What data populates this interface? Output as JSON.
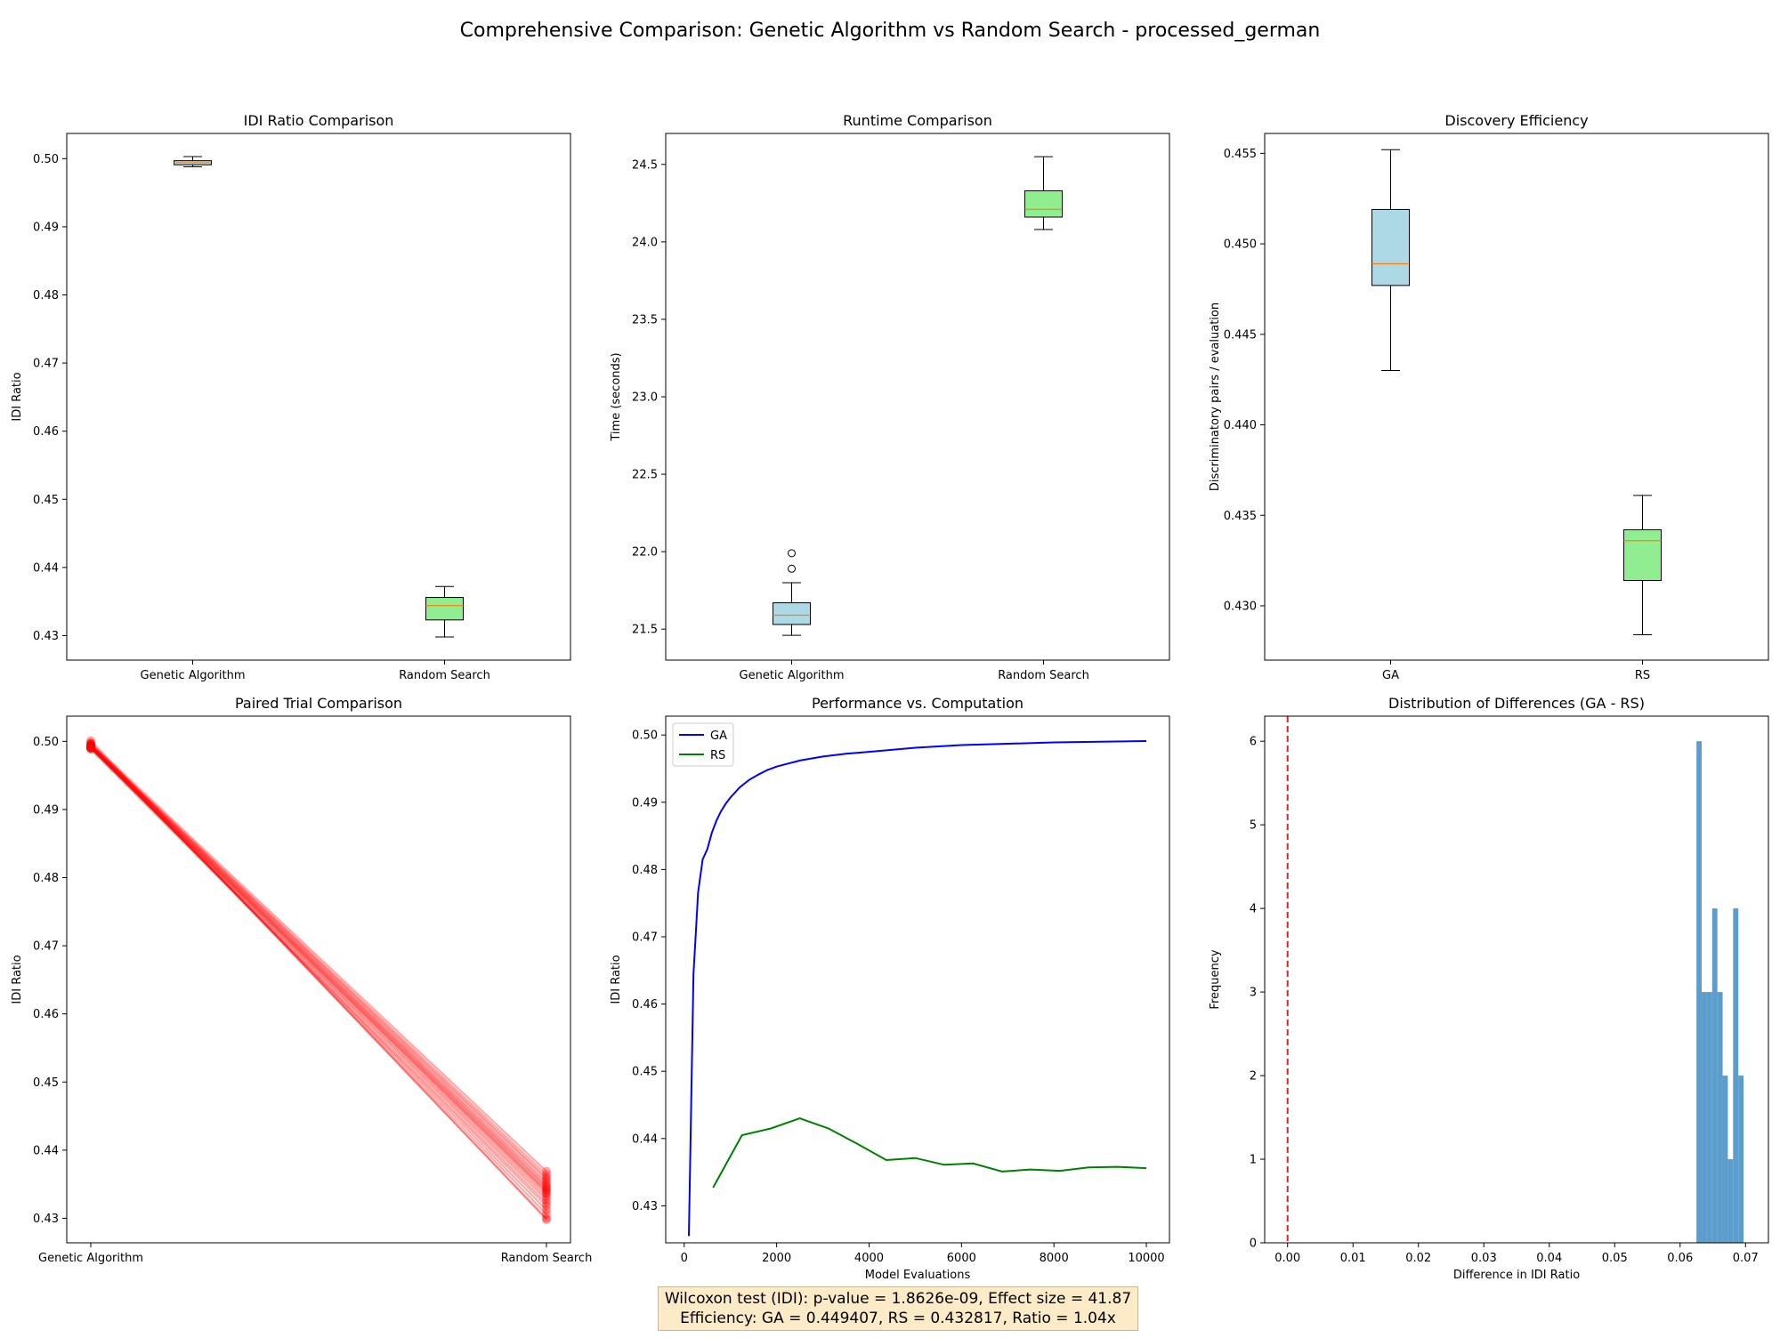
{
  "suptitle": "Comprehensive Comparison: Genetic Algorithm vs Random Search - processed_german",
  "stats_box": {
    "line1": "Wilcoxon test (IDI): p-value = 1.8626e-09, Effect size = 41.87",
    "line2": "Efficiency: GA = 0.449407, RS = 0.432817, Ratio = 1.04x",
    "background": "#fdebc8"
  },
  "colors": {
    "ga_box": "#add8e6",
    "rs_box": "#90ee90",
    "median": "#ff7f0e",
    "ga_line": "#0000ff",
    "rs_line": "#008000",
    "paired": "#ff0000",
    "hist": "#5d9dcb",
    "zero_line": "#d62728"
  },
  "chart_data": [
    {
      "id": "idi-ratio",
      "type": "box",
      "title": "IDI Ratio Comparison",
      "xlabel": "",
      "ylabel": "IDI Ratio",
      "ylim": [
        0.4264,
        0.5037
      ],
      "yticks": [
        0.43,
        0.44,
        0.45,
        0.46,
        0.47,
        0.48,
        0.49,
        0.5
      ],
      "ytick_labels": [
        "0.43",
        "0.44",
        "0.45",
        "0.46",
        "0.47",
        "0.48",
        "0.49",
        "0.50"
      ],
      "boxes": [
        {
          "label": "Genetic Algorithm",
          "whislo": 0.4988,
          "q1": 0.4991,
          "med": 0.4994,
          "q3": 0.4997,
          "whishi": 0.5003,
          "fliers": [],
          "color": "#add8e6"
        },
        {
          "label": "Random Search",
          "whislo": 0.4298,
          "q1": 0.4323,
          "med": 0.4344,
          "q3": 0.4356,
          "whishi": 0.4372,
          "fliers": [],
          "color": "#90ee90"
        }
      ]
    },
    {
      "id": "runtime",
      "type": "box",
      "title": "Runtime Comparison",
      "xlabel": "",
      "ylabel": "Time (seconds)",
      "ylim": [
        21.3,
        24.7
      ],
      "yticks": [
        21.5,
        22.0,
        22.5,
        23.0,
        23.5,
        24.0,
        24.5
      ],
      "ytick_labels": [
        "21.5",
        "22.0",
        "22.5",
        "23.0",
        "23.5",
        "24.0",
        "24.5"
      ],
      "boxes": [
        {
          "label": "Genetic Algorithm",
          "whislo": 21.46,
          "q1": 21.53,
          "med": 21.59,
          "q3": 21.67,
          "whishi": 21.8,
          "fliers": [
            21.89,
            21.99
          ],
          "color": "#add8e6"
        },
        {
          "label": "Random Search",
          "whislo": 24.08,
          "q1": 24.16,
          "med": 24.21,
          "q3": 24.33,
          "whishi": 24.55,
          "fliers": [],
          "color": "#90ee90"
        }
      ]
    },
    {
      "id": "efficiency",
      "type": "box",
      "title": "Discovery Efficiency",
      "xlabel": "",
      "ylabel": "Discriminatory pairs / evaluation",
      "ylim": [
        0.427,
        0.4561
      ],
      "yticks": [
        0.43,
        0.435,
        0.44,
        0.445,
        0.45,
        0.455
      ],
      "ytick_labels": [
        "0.430",
        "0.435",
        "0.440",
        "0.445",
        "0.450",
        "0.455"
      ],
      "boxes": [
        {
          "label": "GA",
          "whislo": 0.443,
          "q1": 0.4477,
          "med": 0.4489,
          "q3": 0.4519,
          "whishi": 0.4552,
          "fliers": [],
          "color": "#add8e6"
        },
        {
          "label": "RS",
          "whislo": 0.4284,
          "q1": 0.4314,
          "med": 0.4336,
          "q3": 0.4342,
          "whishi": 0.4361,
          "fliers": [],
          "color": "#90ee90"
        }
      ]
    },
    {
      "id": "paired",
      "type": "line",
      "title": "Paired Trial Comparison",
      "xlabel": "",
      "ylabel": "IDI Ratio",
      "ylim": [
        0.4264,
        0.5037
      ],
      "yticks": [
        0.43,
        0.44,
        0.45,
        0.46,
        0.47,
        0.48,
        0.49,
        0.5
      ],
      "ytick_labels": [
        "0.43",
        "0.44",
        "0.45",
        "0.46",
        "0.47",
        "0.48",
        "0.49",
        "0.50"
      ],
      "categories": [
        "Genetic Algorithm",
        "Random Search"
      ],
      "pairs": [
        [
          0.4998,
          0.4369
        ],
        [
          0.4996,
          0.4364
        ],
        [
          0.4995,
          0.436
        ],
        [
          0.4995,
          0.4357
        ],
        [
          0.4994,
          0.4353
        ],
        [
          0.4994,
          0.435
        ],
        [
          0.4993,
          0.4347
        ],
        [
          0.4993,
          0.4345
        ],
        [
          0.4992,
          0.4342
        ],
        [
          0.4992,
          0.434
        ],
        [
          0.4991,
          0.4338
        ],
        [
          0.4991,
          0.4335
        ],
        [
          0.499,
          0.4331
        ],
        [
          0.499,
          0.4327
        ],
        [
          0.4989,
          0.4322
        ],
        [
          0.4989,
          0.4318
        ],
        [
          0.4993,
          0.4312
        ],
        [
          0.4994,
          0.4306
        ],
        [
          0.4997,
          0.43
        ],
        [
          0.5001,
          0.4298
        ]
      ]
    },
    {
      "id": "perf-vs-computation",
      "type": "line",
      "title": "Performance vs. Computation",
      "xlabel": "Model Evaluations",
      "ylabel": "IDI Ratio",
      "xlim": [
        -400,
        10500
      ],
      "ylim": [
        0.4245,
        0.5028
      ],
      "xticks": [
        0,
        2000,
        4000,
        6000,
        8000,
        10000
      ],
      "xtick_labels": [
        "0",
        "2000",
        "4000",
        "6000",
        "8000",
        "10000"
      ],
      "yticks": [
        0.43,
        0.44,
        0.45,
        0.46,
        0.47,
        0.48,
        0.49,
        0.5
      ],
      "ytick_labels": [
        "0.43",
        "0.44",
        "0.45",
        "0.46",
        "0.47",
        "0.48",
        "0.49",
        "0.50"
      ],
      "legend_position": "upper left",
      "series": [
        {
          "name": "GA",
          "color": "#0000ff",
          "x": [
            100,
            150,
            200,
            250,
            300,
            400,
            500,
            600,
            700,
            800,
            900,
            1000,
            1200,
            1400,
            1600,
            1800,
            2000,
            2500,
            3000,
            3500,
            4000,
            5000,
            6000,
            7000,
            8000,
            9000,
            10000
          ],
          "y": [
            0.4255,
            0.445,
            0.4645,
            0.4705,
            0.4765,
            0.4815,
            0.483,
            0.4855,
            0.4873,
            0.4887,
            0.4898,
            0.4907,
            0.4922,
            0.4933,
            0.4941,
            0.4948,
            0.4953,
            0.4962,
            0.4968,
            0.4972,
            0.4975,
            0.4981,
            0.4985,
            0.4987,
            0.4989,
            0.499,
            0.4991
          ]
        },
        {
          "name": "RS",
          "color": "#008000",
          "x": [
            625,
            1250,
            1875,
            2500,
            3125,
            3750,
            4375,
            5000,
            5625,
            6250,
            6875,
            7500,
            8125,
            8750,
            9375,
            10000
          ],
          "y": [
            0.4327,
            0.4405,
            0.4415,
            0.443,
            0.4415,
            0.4392,
            0.4368,
            0.4371,
            0.4361,
            0.4363,
            0.4351,
            0.4354,
            0.4352,
            0.4357,
            0.4358,
            0.4356
          ]
        }
      ]
    },
    {
      "id": "diff-hist",
      "type": "histogram",
      "title": "Distribution of Differences (GA - RS)",
      "xlabel": "Difference in IDI Ratio",
      "ylabel": "Frequency",
      "xlim": [
        -0.0035,
        0.0735
      ],
      "ylim": [
        0,
        6.3
      ],
      "xticks": [
        0.0,
        0.01,
        0.02,
        0.03,
        0.04,
        0.05,
        0.06,
        0.07
      ],
      "xtick_labels": [
        "0.00",
        "0.01",
        "0.02",
        "0.03",
        "0.04",
        "0.05",
        "0.06",
        "0.07"
      ],
      "yticks": [
        0,
        1,
        2,
        3,
        4,
        5,
        6
      ],
      "ytick_labels": [
        "0",
        "1",
        "2",
        "3",
        "4",
        "5",
        "6"
      ],
      "reference_line": 0.0,
      "bin_edges": [
        0.0625,
        0.0633,
        0.0641,
        0.0649,
        0.0657,
        0.0665,
        0.0673,
        0.0681,
        0.0689,
        0.0697
      ],
      "counts": [
        6,
        3,
        3,
        4,
        3,
        2,
        1,
        4,
        2,
        2
      ]
    }
  ]
}
